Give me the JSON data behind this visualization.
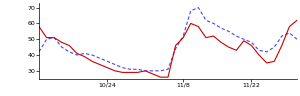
{
  "xlim": [
    0,
    34
  ],
  "ylim": [
    25,
    73
  ],
  "yticks": [
    30,
    40,
    50,
    60,
    70
  ],
  "xtick_positions": [
    9,
    19,
    28
  ],
  "xtick_labels": [
    "10/24",
    "11/8",
    "11/22"
  ],
  "blue_line": [
    42,
    50,
    51,
    45,
    42,
    40,
    41,
    40,
    38,
    36,
    34,
    32,
    31,
    31,
    30,
    30,
    30,
    31,
    44,
    52,
    68,
    70,
    62,
    60,
    57,
    55,
    52,
    50,
    48,
    43,
    42,
    45,
    52,
    54,
    50
  ],
  "red_line": [
    58,
    51,
    51,
    48,
    46,
    41,
    39,
    36,
    34,
    32,
    30,
    29,
    29,
    29,
    30,
    28,
    26,
    26,
    46,
    51,
    60,
    58,
    51,
    52,
    48,
    45,
    43,
    49,
    46,
    40,
    35,
    36,
    46,
    58,
    62
  ],
  "blue_color": "#4444ff",
  "red_color": "#cc0000",
  "bg_color": "#ffffff",
  "linewidth": 0.8
}
